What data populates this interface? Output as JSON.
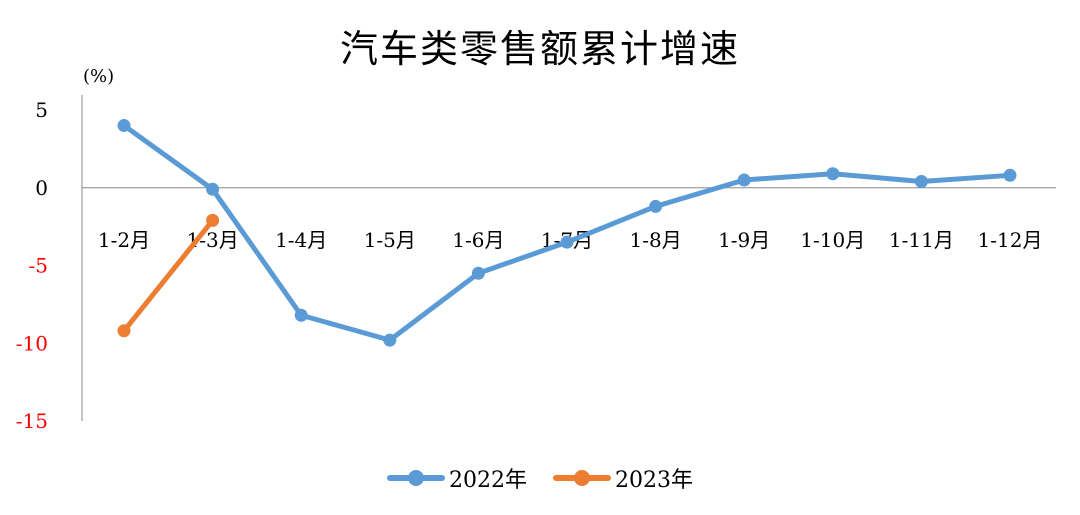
{
  "chart_data": {
    "type": "line",
    "title": "汽车类零售额累计增速",
    "unit_label": "(%)",
    "categories": [
      "1-2月",
      "1-3月",
      "1-4月",
      "1-5月",
      "1-6月",
      "1-7月",
      "1-8月",
      "1-9月",
      "1-10月",
      "1-11月",
      "1-12月"
    ],
    "series": [
      {
        "name": "2022年",
        "color": "#5B9BD5",
        "values": [
          4.0,
          -0.1,
          -8.2,
          -9.8,
          -5.5,
          -3.5,
          -1.2,
          0.5,
          0.9,
          0.4,
          0.8
        ]
      },
      {
        "name": "2023年",
        "color": "#ED7D31",
        "values": [
          -9.2,
          -2.1,
          null,
          null,
          null,
          null,
          null,
          null,
          null,
          null,
          null
        ]
      }
    ],
    "ylim": [
      -15,
      5
    ],
    "yticks": [
      5,
      0,
      -5,
      -10,
      -15
    ],
    "negative_tick_color": "#FF0000",
    "legend_position": "bottom",
    "grid": false
  }
}
